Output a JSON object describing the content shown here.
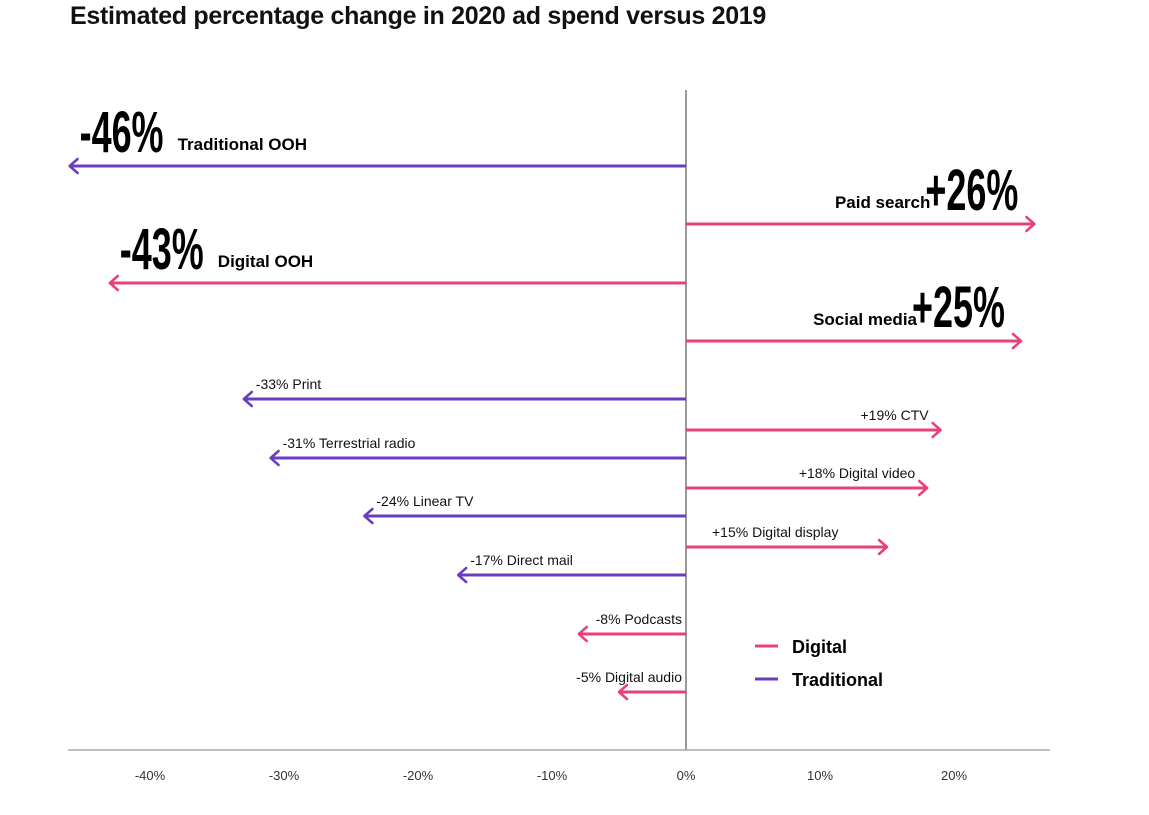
{
  "chart_data": {
    "type": "bar",
    "subtype": "diverging-arrows",
    "title": "Estimated percentage change in 2020 ad spend versus 2019",
    "xlabel": "",
    "ylabel": "",
    "xlim": [
      -46,
      27
    ],
    "x_ticks": [
      -40,
      -30,
      -20,
      -10,
      0,
      10,
      20
    ],
    "x_tick_labels": [
      "-40%",
      "-30%",
      "-20%",
      "-10%",
      "0%",
      "10%",
      "20%"
    ],
    "grid": false,
    "legend": {
      "placement": "bottom-right",
      "entries": [
        {
          "name": "Digital",
          "color": "#e8417a"
        },
        {
          "name": "Traditional",
          "color": "#6a3cc0"
        }
      ]
    },
    "colors": {
      "Digital": "#e8417a",
      "Traditional": "#6a3cc0",
      "axis": "#999999"
    },
    "series": [
      {
        "category": "Traditional OOH",
        "value": -46,
        "type": "Traditional",
        "label": "-46%",
        "emphasis": true
      },
      {
        "category": "Paid search",
        "value": 26,
        "type": "Digital",
        "label": "+26%",
        "emphasis": true
      },
      {
        "category": "Digital OOH",
        "value": -43,
        "type": "Digital",
        "label": "-43%",
        "emphasis": true
      },
      {
        "category": "Social media",
        "value": 25,
        "type": "Digital",
        "label": "+25%",
        "emphasis": true
      },
      {
        "category": "Print",
        "value": -33,
        "type": "Traditional",
        "label": "-33% Print",
        "emphasis": false
      },
      {
        "category": "CTV",
        "value": 19,
        "type": "Digital",
        "label": "+19% CTV",
        "emphasis": false
      },
      {
        "category": "Terrestrial radio",
        "value": -31,
        "type": "Traditional",
        "label": "-31% Terrestrial radio",
        "emphasis": false
      },
      {
        "category": "Digital video",
        "value": 18,
        "type": "Digital",
        "label": "+18% Digital video",
        "emphasis": false
      },
      {
        "category": "Linear TV",
        "value": -24,
        "type": "Traditional",
        "label": "-24% Linear TV",
        "emphasis": false
      },
      {
        "category": "Digital display",
        "value": 15,
        "type": "Digital",
        "label": "+15% Digital display",
        "emphasis": false
      },
      {
        "category": "Direct mail",
        "value": -17,
        "type": "Traditional",
        "label": "-17% Direct mail",
        "emphasis": false
      },
      {
        "category": "Podcasts",
        "value": -8,
        "type": "Digital",
        "label": "-8% Podcasts",
        "emphasis": false
      },
      {
        "category": "Digital audio",
        "value": -5,
        "type": "Digital",
        "label": "-5% Digital audio",
        "emphasis": false
      }
    ]
  }
}
